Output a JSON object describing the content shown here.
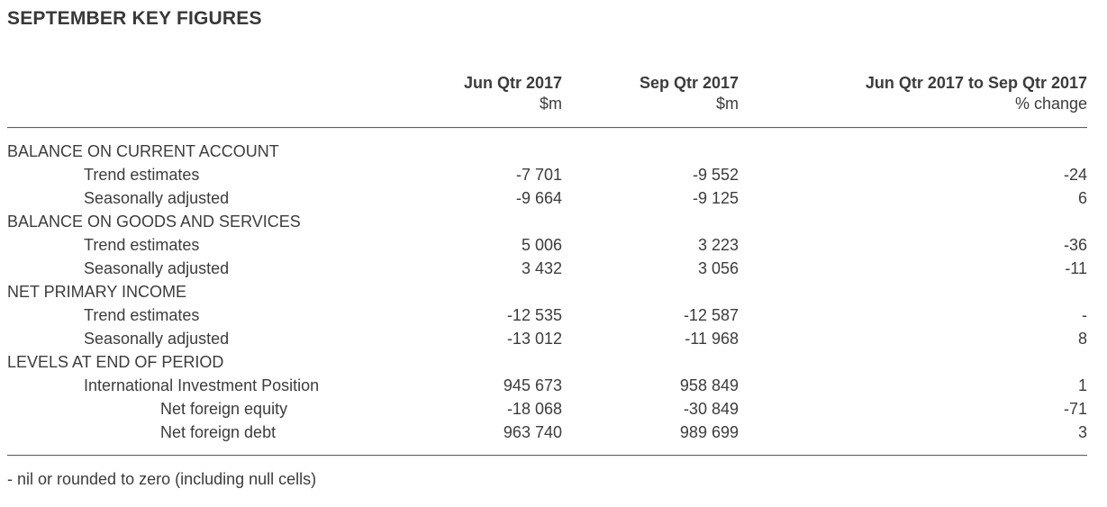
{
  "page": {
    "title": "SEPTEMBER KEY FIGURES",
    "footnote": "- nil or rounded to zero (including null cells)"
  },
  "colors": {
    "text": "#3c3c3c",
    "rule_dark": "#5f5f5f",
    "rule_light": "#e9e9e9",
    "background": "#ffffff"
  },
  "table": {
    "columns": {
      "col1": {
        "period": "Jun Qtr 2017",
        "unit": "$m"
      },
      "col2": {
        "period": "Sep Qtr 2017",
        "unit": "$m"
      },
      "col3": {
        "period": "Jun Qtr 2017 to Sep Qtr 2017",
        "unit": "% change"
      }
    },
    "rows": [
      {
        "type": "section",
        "label": "BALANCE ON CURRENT ACCOUNT"
      },
      {
        "type": "data",
        "label": "Trend estimates",
        "jun": "-7 701",
        "sep": "-9 552",
        "change": "-24"
      },
      {
        "type": "data",
        "label": "Seasonally adjusted",
        "jun": "-9 664",
        "sep": "-9 125",
        "change": "6"
      },
      {
        "type": "section",
        "label": "BALANCE ON GOODS AND SERVICES"
      },
      {
        "type": "data",
        "label": "Trend estimates",
        "jun": "5 006",
        "sep": "3 223",
        "change": "-36"
      },
      {
        "type": "data",
        "label": "Seasonally adjusted",
        "jun": "3 432",
        "sep": "3 056",
        "change": "-11"
      },
      {
        "type": "section",
        "label": "NET PRIMARY INCOME"
      },
      {
        "type": "data",
        "label": "Trend estimates",
        "jun": "-12 535",
        "sep": "-12 587",
        "change": "-"
      },
      {
        "type": "data",
        "label": "Seasonally adjusted",
        "jun": "-13 012",
        "sep": "-11 968",
        "change": "8"
      },
      {
        "type": "section",
        "label": "LEVELS AT END OF PERIOD"
      },
      {
        "type": "data",
        "label": "International Investment Position",
        "jun": "945 673",
        "sep": "958 849",
        "change": "1"
      },
      {
        "type": "data",
        "label": "Net foreign equity",
        "jun": "-18 068",
        "sep": "-30 849",
        "change": "-71"
      },
      {
        "type": "data",
        "label": "Net foreign debt",
        "jun": "963 740",
        "sep": "989 699",
        "change": "3"
      }
    ]
  }
}
